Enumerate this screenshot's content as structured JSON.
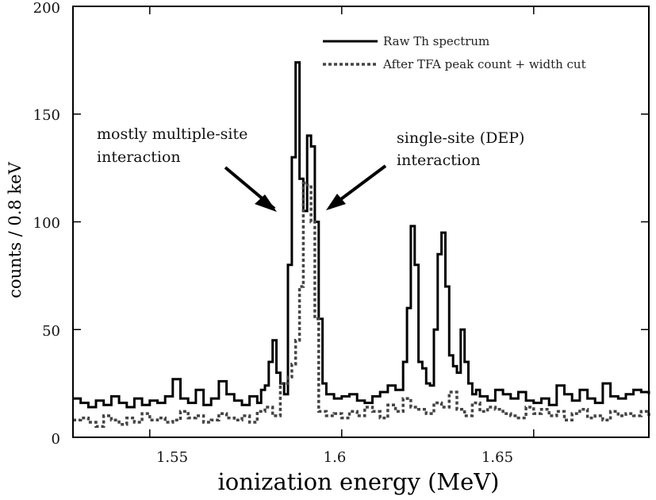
{
  "chart_data": {
    "type": "line",
    "step": true,
    "xlabel": "ionization energy (MeV)",
    "ylabel": "counts / 0.8 keV",
    "xlim": [
      1.53,
      1.68
    ],
    "ylim": [
      0,
      200
    ],
    "xticks": [
      1.55,
      1.6,
      1.65
    ],
    "xtick_labels": [
      "1.55",
      "1.6",
      "1.65"
    ],
    "yticks": [
      0,
      50,
      100,
      150,
      200
    ],
    "ytick_labels": [
      "0",
      "50",
      "100",
      "150",
      "200"
    ],
    "grid": false,
    "legend_position": "top-right",
    "annotations": [
      {
        "text_lines": [
          "mostly multiple-site",
          "interaction"
        ],
        "points_to": [
          1.5845,
          105
        ]
      },
      {
        "text_lines": [
          "single-site (DEP)",
          "interaction"
        ],
        "points_to": [
          1.5945,
          105
        ]
      }
    ],
    "series": [
      {
        "name": "Raw Th spectrum",
        "color": "#000000",
        "dash": "solid",
        "x": [
          1.53,
          1.532,
          1.534,
          1.536,
          1.538,
          1.54,
          1.542,
          1.544,
          1.546,
          1.548,
          1.55,
          1.552,
          1.554,
          1.556,
          1.558,
          1.56,
          1.562,
          1.564,
          1.566,
          1.568,
          1.57,
          1.572,
          1.574,
          1.576,
          1.578,
          1.579,
          1.58,
          1.581,
          1.582,
          1.583,
          1.584,
          1.585,
          1.586,
          1.587,
          1.588,
          1.589,
          1.59,
          1.591,
          1.592,
          1.593,
          1.594,
          1.595,
          1.596,
          1.598,
          1.6,
          1.602,
          1.604,
          1.606,
          1.608,
          1.61,
          1.612,
          1.614,
          1.616,
          1.617,
          1.618,
          1.619,
          1.62,
          1.621,
          1.622,
          1.623,
          1.624,
          1.625,
          1.626,
          1.627,
          1.628,
          1.629,
          1.63,
          1.631,
          1.632,
          1.633,
          1.634,
          1.635,
          1.636,
          1.638,
          1.64,
          1.642,
          1.644,
          1.646,
          1.648,
          1.65,
          1.652,
          1.654,
          1.656,
          1.658,
          1.66,
          1.662,
          1.664,
          1.666,
          1.668,
          1.67,
          1.672,
          1.674,
          1.676,
          1.678,
          1.68
        ],
        "y": [
          18,
          16,
          14,
          17,
          15,
          19,
          16,
          14,
          18,
          15,
          17,
          16,
          19,
          27,
          18,
          16,
          22,
          15,
          18,
          26,
          20,
          17,
          15,
          19,
          16,
          22,
          24,
          35,
          45,
          30,
          25,
          20,
          80,
          130,
          174,
          120,
          105,
          140,
          135,
          100,
          55,
          25,
          20,
          18,
          19,
          20,
          17,
          16,
          19,
          21,
          24,
          22,
          35,
          60,
          98,
          80,
          35,
          32,
          25,
          24,
          50,
          85,
          95,
          70,
          38,
          33,
          30,
          50,
          35,
          25,
          20,
          22,
          19,
          17,
          22,
          20,
          18,
          21,
          17,
          16,
          18,
          15,
          24,
          20,
          17,
          22,
          18,
          16,
          25,
          19,
          18,
          20,
          22,
          21,
          20
        ],
        "peak": {
          "x": 1.588,
          "y": 174
        }
      },
      {
        "name": "After TFA peak count + width cut",
        "color": "#444444",
        "dash": "dashed",
        "x": [
          1.53,
          1.532,
          1.534,
          1.536,
          1.538,
          1.54,
          1.542,
          1.544,
          1.546,
          1.548,
          1.55,
          1.552,
          1.554,
          1.556,
          1.558,
          1.56,
          1.562,
          1.564,
          1.566,
          1.568,
          1.57,
          1.572,
          1.574,
          1.576,
          1.578,
          1.58,
          1.582,
          1.584,
          1.586,
          1.587,
          1.588,
          1.589,
          1.59,
          1.591,
          1.592,
          1.593,
          1.594,
          1.596,
          1.598,
          1.6,
          1.602,
          1.604,
          1.606,
          1.608,
          1.61,
          1.612,
          1.614,
          1.616,
          1.618,
          1.62,
          1.622,
          1.624,
          1.626,
          1.628,
          1.63,
          1.632,
          1.634,
          1.636,
          1.638,
          1.64,
          1.642,
          1.644,
          1.646,
          1.648,
          1.65,
          1.652,
          1.654,
          1.656,
          1.658,
          1.66,
          1.662,
          1.664,
          1.666,
          1.668,
          1.67,
          1.672,
          1.674,
          1.676,
          1.678,
          1.68
        ],
        "y": [
          8,
          9,
          7,
          5,
          10,
          8,
          6,
          9,
          7,
          11,
          8,
          9,
          7,
          8,
          12,
          9,
          10,
          7,
          8,
          11,
          9,
          8,
          10,
          7,
          12,
          14,
          10,
          25,
          28,
          34,
          45,
          70,
          118,
          117,
          100,
          55,
          12,
          10,
          11,
          9,
          12,
          10,
          14,
          12,
          9,
          15,
          12,
          18,
          14,
          13,
          11,
          16,
          14,
          21,
          13,
          10,
          16,
          12,
          14,
          13,
          11,
          10,
          9,
          14,
          11,
          13,
          10,
          12,
          8,
          11,
          13,
          9,
          10,
          8,
          12,
          10,
          11,
          10,
          12,
          9
        ],
        "peak": {
          "x": 1.59,
          "y": 118
        }
      }
    ]
  }
}
